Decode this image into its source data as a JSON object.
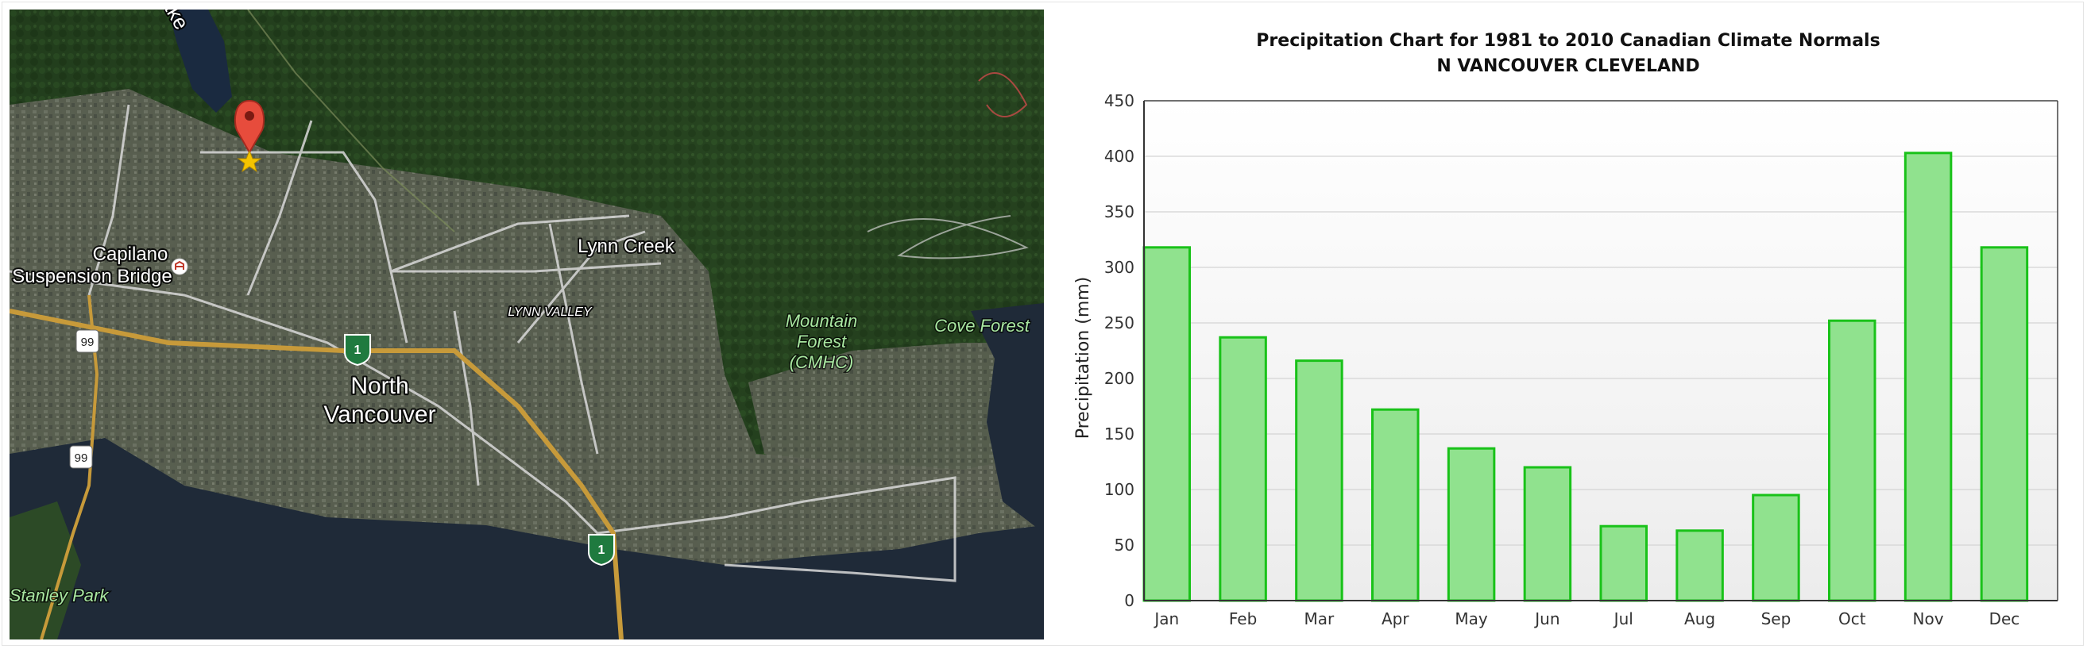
{
  "map": {
    "labels": {
      "capilano_1": "Capilano",
      "capilano_2": "Suspension Bridge",
      "lynn_creek": "Lynn Creek",
      "lynn_valley": "LYNN VALLEY",
      "mountain_1": "Mountain",
      "mountain_2": "Forest",
      "mountain_3": "(CMHC)",
      "cove_forest": "Cove Forest",
      "north_1": "North",
      "north_2": "Vancouver",
      "stanley_park": "Stanley Park",
      "hwy_99_a": "99",
      "hwy_99_b": "99",
      "lake_fragment": "ake",
      "tch_a": "1",
      "tch_b": "1"
    },
    "icons": [
      "location-pin-icon",
      "attraction-icon",
      "trans-canada-shield-icon",
      "highway-shield-icon"
    ]
  },
  "chart_data": {
    "type": "bar",
    "title": "Precipitation Chart for 1981 to 2010 Canadian Climate Normals",
    "subtitle": "N VANCOUVER CLEVELAND",
    "xlabel": "",
    "ylabel": "Precipitation (mm)",
    "categories": [
      "Jan",
      "Feb",
      "Mar",
      "Apr",
      "May",
      "Jun",
      "Jul",
      "Aug",
      "Sep",
      "Oct",
      "Nov",
      "Dec"
    ],
    "values": [
      318,
      237,
      216,
      172,
      137,
      120,
      67,
      63,
      95,
      252,
      403,
      318
    ],
    "ylim": [
      0,
      450
    ],
    "yticks": [
      0,
      50,
      100,
      150,
      200,
      250,
      300,
      350,
      400,
      450
    ],
    "grid": true,
    "legend": "none",
    "colors": {
      "bar_fill": "#90e28e",
      "bar_stroke": "#19c219",
      "grid": "#d4d4d4",
      "axis": "#333333"
    }
  }
}
